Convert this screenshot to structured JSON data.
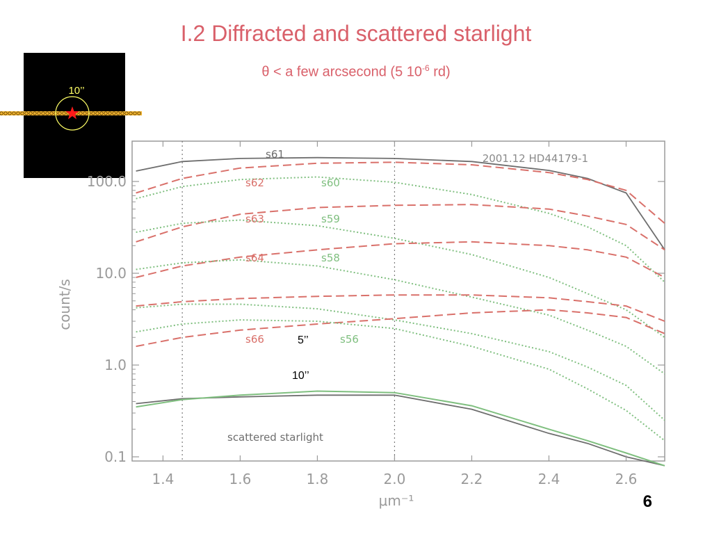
{
  "slide": {
    "title": "I.2 Diffracted and scattered starlight",
    "subtitle_main": "θ < a few arcsecond (5 10",
    "subtitle_sup": "-6",
    "subtitle_tail": " rd)",
    "page_number": "6"
  },
  "inset": {
    "circle_label": "10’’",
    "marker_icon": "red-star",
    "background_color": "#000000",
    "slit_color": "#f2b531",
    "circle_color": "#ffff66",
    "star_color": "#ff1a1a"
  },
  "colors": {
    "title": "#d9606a",
    "red_series": "#d9706a",
    "green_series": "#7fbf7f",
    "gray_series": "#6e6e6e",
    "axis": "#9a9a9a"
  },
  "chart_data": {
    "type": "line",
    "title": "",
    "annotation_top_right": "2001.12 HD44179-1",
    "xlabel": "μm⁻¹",
    "ylabel": "count/s",
    "xlim": [
      1.32,
      2.7
    ],
    "ylim": [
      0.1,
      200
    ],
    "yscale": "log",
    "xticks": [
      1.4,
      1.6,
      1.8,
      2.0,
      2.2,
      2.4,
      2.6
    ],
    "xtick_labels": [
      "1.4",
      "1.6",
      "1.8",
      "2.0",
      "2.2",
      "2.4",
      "2.6"
    ],
    "yticks": [
      0.1,
      1.0,
      10.0,
      100.0
    ],
    "ytick_labels": [
      "0.1",
      "1.0",
      "10.0",
      "100.0"
    ],
    "vlines": [
      1.45,
      2.0
    ],
    "x": [
      1.33,
      1.45,
      1.6,
      1.8,
      2.0,
      2.2,
      2.4,
      2.5,
      2.6,
      2.7
    ],
    "series": [
      {
        "name": "s61",
        "style": "solid",
        "color": "gray",
        "values": [
          130,
          165,
          178,
          182,
          178,
          165,
          132,
          108,
          75,
          18
        ]
      },
      {
        "name": "s62",
        "style": "dashed",
        "color": "red",
        "values": [
          75,
          108,
          140,
          158,
          162,
          152,
          125,
          105,
          80,
          35
        ]
      },
      {
        "name": "s60",
        "style": "dotted",
        "color": "green",
        "values": [
          65,
          88,
          105,
          112,
          98,
          72,
          45,
          32,
          20,
          8
        ]
      },
      {
        "name": "s63",
        "style": "dashed",
        "color": "red",
        "values": [
          22,
          32,
          44,
          52,
          55,
          56,
          50,
          42,
          34,
          18
        ]
      },
      {
        "name": "s59",
        "style": "dotted",
        "color": "green",
        "values": [
          28,
          35,
          38,
          33,
          24,
          16,
          9,
          6,
          4,
          2
        ]
      },
      {
        "name": "s64",
        "style": "dashed",
        "color": "red",
        "values": [
          9,
          12,
          15,
          18,
          21,
          22,
          20,
          18,
          15,
          9
        ]
      },
      {
        "name": "s58",
        "style": "dotted",
        "color": "green",
        "values": [
          11,
          13,
          14,
          12,
          8.5,
          5.5,
          3.5,
          2.4,
          1.6,
          0.8
        ]
      },
      {
        "name": "",
        "style": "dashed",
        "color": "red",
        "values": [
          4.4,
          4.9,
          5.3,
          5.6,
          5.8,
          5.8,
          5.4,
          4.9,
          4.4,
          3.0
        ]
      },
      {
        "name": "",
        "style": "dotted",
        "color": "green",
        "values": [
          4.2,
          4.6,
          4.6,
          4.1,
          3.1,
          2.2,
          1.4,
          0.95,
          0.6,
          0.25
        ]
      },
      {
        "name": "s66",
        "style": "dashed",
        "color": "red",
        "values": [
          1.6,
          2.0,
          2.4,
          2.8,
          3.2,
          3.7,
          4.0,
          3.7,
          3.3,
          2.2
        ]
      },
      {
        "name": "s56",
        "style": "dotted",
        "color": "green",
        "values": [
          2.3,
          2.8,
          3.1,
          3.0,
          2.5,
          1.6,
          0.9,
          0.55,
          0.32,
          0.15
        ]
      },
      {
        "name": "scattered starlight",
        "style": "solid",
        "color": "gray",
        "values": [
          0.38,
          0.43,
          0.45,
          0.47,
          0.47,
          0.33,
          0.18,
          0.14,
          0.1,
          0.08
        ]
      },
      {
        "name": "",
        "style": "solid",
        "color": "green",
        "values": [
          0.35,
          0.42,
          0.47,
          0.52,
          0.5,
          0.36,
          0.2,
          0.15,
          0.11,
          0.08
        ]
      }
    ],
    "labels": {
      "s61": "s61",
      "s62": "s62",
      "s60": "s60",
      "s63": "s63",
      "s59": "s59",
      "s64": "s64",
      "s58": "s58",
      "s66": "s66",
      "s56": "s56",
      "scattered": "scattered starlight",
      "ann_5": "5’’",
      "ann_10": "10’’"
    }
  }
}
